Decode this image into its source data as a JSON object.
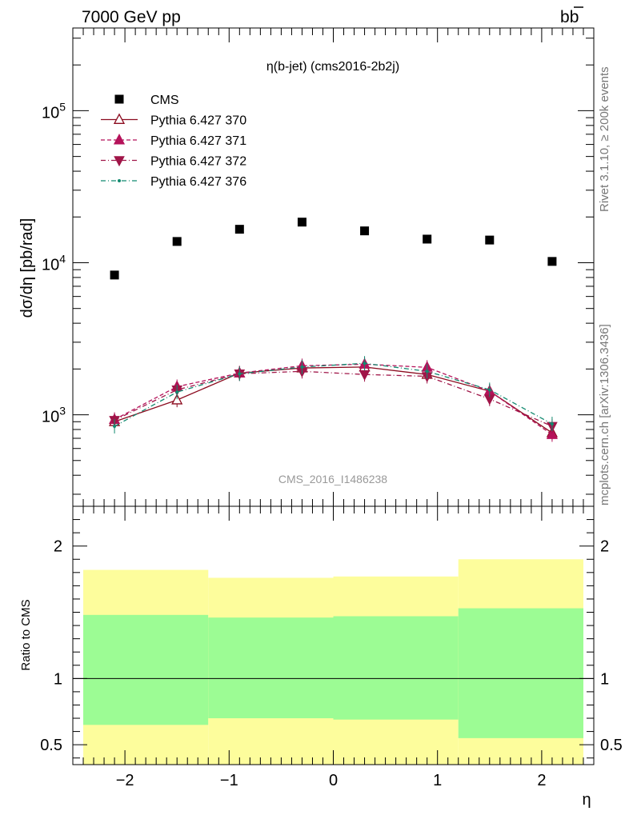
{
  "header": {
    "left": "7000 GeV pp",
    "right": "b",
    "right_bar": "b"
  },
  "side_text": {
    "rivet": "Rivet 3.1.10, ≥ 200k events",
    "mcplots": "mcplots.cern.ch [arXiv:1306.3436]"
  },
  "chart_data": {
    "type": "scatter",
    "title": "η(b-jet) (cms2016-2b2j)",
    "watermark": "CMS_2016_I1486238",
    "xlabel": "η",
    "ylabel": "dσ/dη [pb/rad]",
    "ratio_ylabel": "Ratio to CMS",
    "log_y": true,
    "xlim": [
      -2.5,
      2.5
    ],
    "ylim": [
      250,
      350000
    ],
    "ratio_ylim": [
      0.35,
      2.3
    ],
    "x_ticks": [
      "−2",
      "−1",
      "0",
      "1",
      "2"
    ],
    "y_ticks": [
      "10",
      "10",
      "10"
    ],
    "y_tick_exponents": [
      "3",
      "4",
      "5"
    ],
    "ratio_ticks": [
      "0.5",
      "1",
      "2"
    ],
    "x": [
      -2.1,
      -1.5,
      -0.9,
      -0.3,
      0.3,
      0.9,
      1.5,
      2.1
    ],
    "series": [
      {
        "name": "CMS",
        "color": "#000000",
        "marker": "square",
        "values": [
          8300,
          13800,
          16600,
          18500,
          16200,
          14300,
          14100,
          10200
        ]
      },
      {
        "name": "Pythia 6.427 370",
        "color": "#8b0a1e",
        "marker": "triangle-up-open",
        "line": "solid",
        "values": [
          900,
          1250,
          1880,
          2030,
          2060,
          1840,
          1430,
          760
        ]
      },
      {
        "name": "Pythia 6.427 371",
        "color": "#b5125a",
        "marker": "triangle-up",
        "line": "dashed",
        "values": [
          930,
          1530,
          1880,
          2100,
          2150,
          2050,
          1430,
          740
        ]
      },
      {
        "name": "Pythia 6.427 372",
        "color": "#a01548",
        "marker": "triangle-down",
        "line": "dashdot",
        "values": [
          920,
          1460,
          1860,
          1930,
          1840,
          1790,
          1270,
          840
        ]
      },
      {
        "name": "Pythia 6.427 376",
        "color": "#128a70",
        "marker": "dot",
        "line": "dashdot",
        "values": [
          840,
          1410,
          1860,
          2060,
          2180,
          1930,
          1460,
          870
        ]
      }
    ],
    "ratio_bands": {
      "edges": [
        -2.4,
        -1.2,
        0.0,
        1.2,
        2.4
      ],
      "green_low": [
        0.65,
        0.7,
        0.69,
        0.55
      ],
      "green_high": [
        1.48,
        1.46,
        1.47,
        1.53
      ],
      "yellow_low": [
        0.35,
        0.35,
        0.35,
        0.35
      ],
      "yellow_high": [
        1.82,
        1.76,
        1.77,
        1.9
      ],
      "green_color": "#9cfc94",
      "yellow_color": "#fdfd9c"
    }
  }
}
